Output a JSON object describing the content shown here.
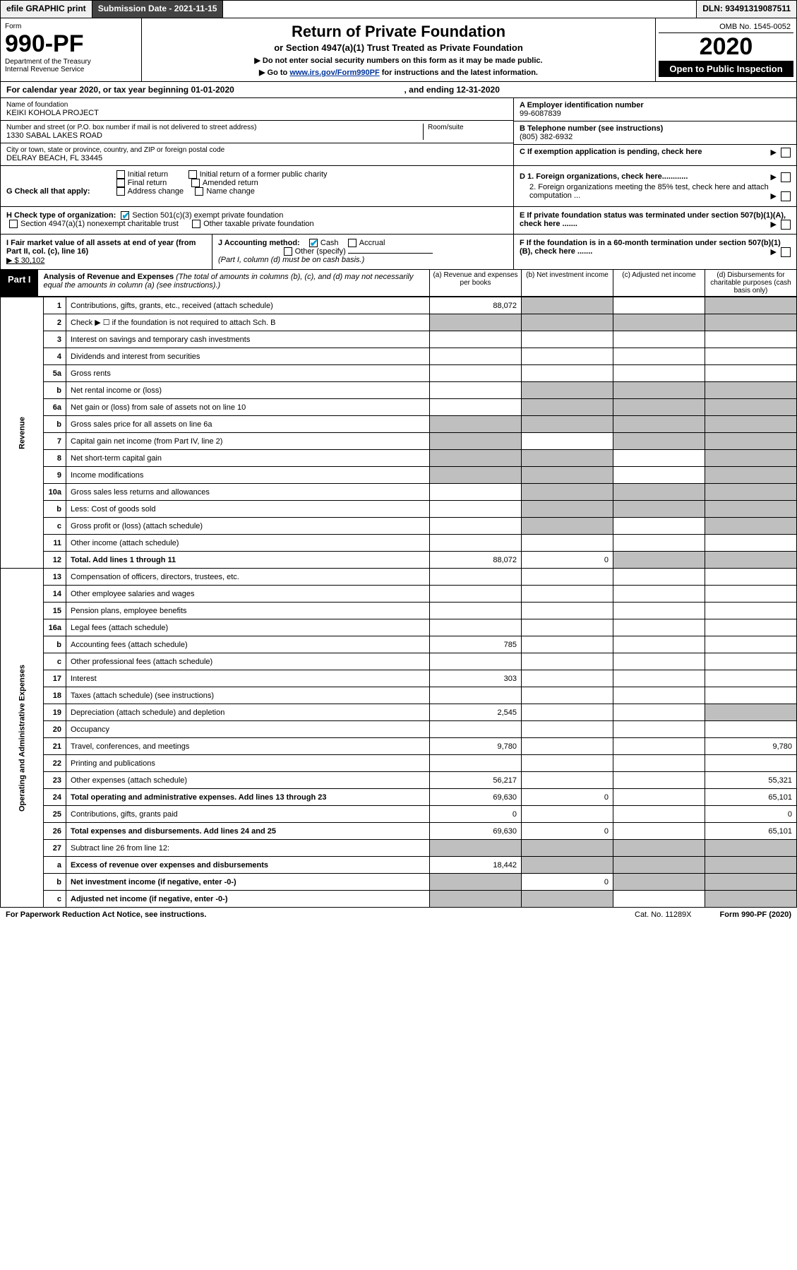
{
  "topbar": {
    "efile": "efile GRAPHIC print",
    "submission": "Submission Date - 2021-11-15",
    "dln": "DLN: 93491319087511"
  },
  "header": {
    "form_label": "Form",
    "form_number": "990-PF",
    "dept1": "Department of the Treasury",
    "dept2": "Internal Revenue Service",
    "title": "Return of Private Foundation",
    "subtitle": "or Section 4947(a)(1) Trust Treated as Private Foundation",
    "instr1": "▶ Do not enter social security numbers on this form as it may be made public.",
    "instr2_pre": "▶ Go to ",
    "instr2_link": "www.irs.gov/Form990PF",
    "instr2_post": " for instructions and the latest information.",
    "omb": "OMB No. 1545-0052",
    "year": "2020",
    "open": "Open to Public Inspection"
  },
  "filing": {
    "calendar": "For calendar year 2020, or tax year beginning 01-01-2020",
    "ending": ", and ending 12-31-2020"
  },
  "info": {
    "name_label": "Name of foundation",
    "name": "KEIKI KOHOLA PROJECT",
    "addr_label": "Number and street (or P.O. box number if mail is not delivered to street address)",
    "addr": "1330 SABAL LAKES ROAD",
    "room_label": "Room/suite",
    "city_label": "City or town, state or province, country, and ZIP or foreign postal code",
    "city": "DELRAY BEACH, FL  33445",
    "a_label": "A Employer identification number",
    "a_val": "99-6087839",
    "b_label": "B Telephone number (see instructions)",
    "b_val": "(805) 382-6932",
    "c_label": "C If exemption application is pending, check here"
  },
  "checks": {
    "g_label": "G Check all that apply:",
    "g_opts": [
      "Initial return",
      "Final return",
      "Address change",
      "Initial return of a former public charity",
      "Amended return",
      "Name change"
    ],
    "h_label": "H Check type of organization:",
    "h_501c3": "Section 501(c)(3) exempt private foundation",
    "h_4947": "Section 4947(a)(1) nonexempt charitable trust",
    "h_other": "Other taxable private foundation",
    "d1": "D 1. Foreign organizations, check here............",
    "d2": "2. Foreign organizations meeting the 85% test, check here and attach computation ...",
    "e": "E  If private foundation status was terminated under section 507(b)(1)(A), check here .......",
    "i_label": "I Fair market value of all assets at end of year (from Part II, col. (c), line 16)",
    "i_val": "▶ $  30,102",
    "j_label": "J Accounting method:",
    "j_cash": "Cash",
    "j_accrual": "Accrual",
    "j_other": "Other (specify)",
    "j_note": "(Part I, column (d) must be on cash basis.)",
    "f": "F  If the foundation is in a 60-month termination under section 507(b)(1)(B), check here ......."
  },
  "part1": {
    "label": "Part I",
    "title": "Analysis of Revenue and Expenses",
    "note": "(The total of amounts in columns (b), (c), and (d) may not necessarily equal the amounts in column (a) (see instructions).)",
    "col_a": "(a)   Revenue and expenses per books",
    "col_b": "(b)   Net investment income",
    "col_c": "(c)   Adjusted net income",
    "col_d": "(d)   Disbursements for charitable purposes (cash basis only)"
  },
  "side_labels": {
    "revenue": "Revenue",
    "expenses": "Operating and Administrative Expenses"
  },
  "rows": [
    {
      "n": "1",
      "d": "Contributions, gifts, grants, etc., received (attach schedule)",
      "a": "88,072",
      "bg": true,
      "cg": false,
      "dg": true
    },
    {
      "n": "2",
      "d": "Check ▶ ☐ if the foundation is not required to attach Sch. B",
      "ag": true,
      "bg": true,
      "cg": true,
      "dg": true
    },
    {
      "n": "3",
      "d": "Interest on savings and temporary cash investments"
    },
    {
      "n": "4",
      "d": "Dividends and interest from securities"
    },
    {
      "n": "5a",
      "d": "Gross rents"
    },
    {
      "n": "b",
      "d": "Net rental income or (loss)",
      "ag": false,
      "bg": true,
      "cg": true,
      "dg": true
    },
    {
      "n": "6a",
      "d": "Net gain or (loss) from sale of assets not on line 10",
      "bg": true,
      "cg": true,
      "dg": true
    },
    {
      "n": "b",
      "d": "Gross sales price for all assets on line 6a",
      "ag": true,
      "bg": true,
      "cg": true,
      "dg": true
    },
    {
      "n": "7",
      "d": "Capital gain net income (from Part IV, line 2)",
      "ag": true,
      "cg": true,
      "dg": true
    },
    {
      "n": "8",
      "d": "Net short-term capital gain",
      "ag": true,
      "bg": true,
      "dg": true
    },
    {
      "n": "9",
      "d": "Income modifications",
      "ag": true,
      "bg": true,
      "dg": true
    },
    {
      "n": "10a",
      "d": "Gross sales less returns and allowances",
      "ag": false,
      "bg": true,
      "cg": true,
      "dg": true
    },
    {
      "n": "b",
      "d": "Less: Cost of goods sold",
      "ag": false,
      "bg": true,
      "cg": true,
      "dg": true
    },
    {
      "n": "c",
      "d": "Gross profit or (loss) (attach schedule)",
      "bg": true,
      "dg": true
    },
    {
      "n": "11",
      "d": "Other income (attach schedule)"
    },
    {
      "n": "12",
      "d": "Total. Add lines 1 through 11",
      "bold": true,
      "a": "88,072",
      "b": "0",
      "cg": true,
      "dg": true
    }
  ],
  "exp_rows": [
    {
      "n": "13",
      "d": "Compensation of officers, directors, trustees, etc."
    },
    {
      "n": "14",
      "d": "Other employee salaries and wages"
    },
    {
      "n": "15",
      "d": "Pension plans, employee benefits"
    },
    {
      "n": "16a",
      "d": "Legal fees (attach schedule)"
    },
    {
      "n": "b",
      "d": "Accounting fees (attach schedule)",
      "a": "785"
    },
    {
      "n": "c",
      "d": "Other professional fees (attach schedule)"
    },
    {
      "n": "17",
      "d": "Interest",
      "a": "303"
    },
    {
      "n": "18",
      "d": "Taxes (attach schedule) (see instructions)"
    },
    {
      "n": "19",
      "d": "Depreciation (attach schedule) and depletion",
      "a": "2,545",
      "dg": true
    },
    {
      "n": "20",
      "d": "Occupancy"
    },
    {
      "n": "21",
      "d": "Travel, conferences, and meetings",
      "a": "9,780",
      "dv": "9,780"
    },
    {
      "n": "22",
      "d": "Printing and publications"
    },
    {
      "n": "23",
      "d": "Other expenses (attach schedule)",
      "a": "56,217",
      "dv": "55,321"
    },
    {
      "n": "24",
      "d": "Total operating and administrative expenses. Add lines 13 through 23",
      "bold": true,
      "a": "69,630",
      "b": "0",
      "dv": "65,101"
    },
    {
      "n": "25",
      "d": "Contributions, gifts, grants paid",
      "a": "0",
      "dv": "0"
    },
    {
      "n": "26",
      "d": "Total expenses and disbursements. Add lines 24 and 25",
      "bold": true,
      "a": "69,630",
      "b": "0",
      "dv": "65,101"
    },
    {
      "n": "27",
      "d": "Subtract line 26 from line 12:",
      "ag": true,
      "bg": true,
      "cg": true,
      "dg": true
    },
    {
      "n": "a",
      "d": "Excess of revenue over expenses and disbursements",
      "bold": true,
      "a": "18,442",
      "bg": true,
      "cg": true,
      "dg": true
    },
    {
      "n": "b",
      "d": "Net investment income (if negative, enter -0-)",
      "bold": true,
      "ag": true,
      "b": "0",
      "cg": true,
      "dg": true
    },
    {
      "n": "c",
      "d": "Adjusted net income (if negative, enter -0-)",
      "bold": true,
      "ag": true,
      "bg": true,
      "dg": true
    }
  ],
  "footer": {
    "left": "For Paperwork Reduction Act Notice, see instructions.",
    "mid": "Cat. No. 11289X",
    "right": "Form 990-PF (2020)"
  }
}
